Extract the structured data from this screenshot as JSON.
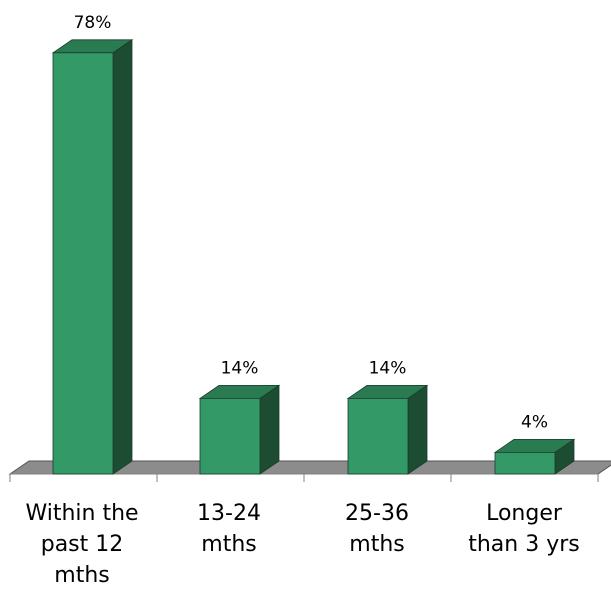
{
  "chart_data": {
    "type": "bar",
    "style": "3d-column",
    "categories": [
      [
        "Within the",
        "past 12",
        "mths"
      ],
      [
        "13-24",
        "mths"
      ],
      [
        "25-36",
        "mths"
      ],
      [
        "Longer",
        "than 3 yrs"
      ]
    ],
    "values": [
      78,
      14,
      14,
      4
    ],
    "data_labels": [
      "78%",
      "14%",
      "14%",
      "4%"
    ],
    "unit": "%",
    "ylim": [
      0,
      80
    ],
    "grid": false,
    "legend": "none",
    "colors": {
      "bar_front": "#339966",
      "bar_top": "#2a7a52",
      "bar_side": "#1c4d33",
      "floor": "#8c8c8c"
    }
  }
}
